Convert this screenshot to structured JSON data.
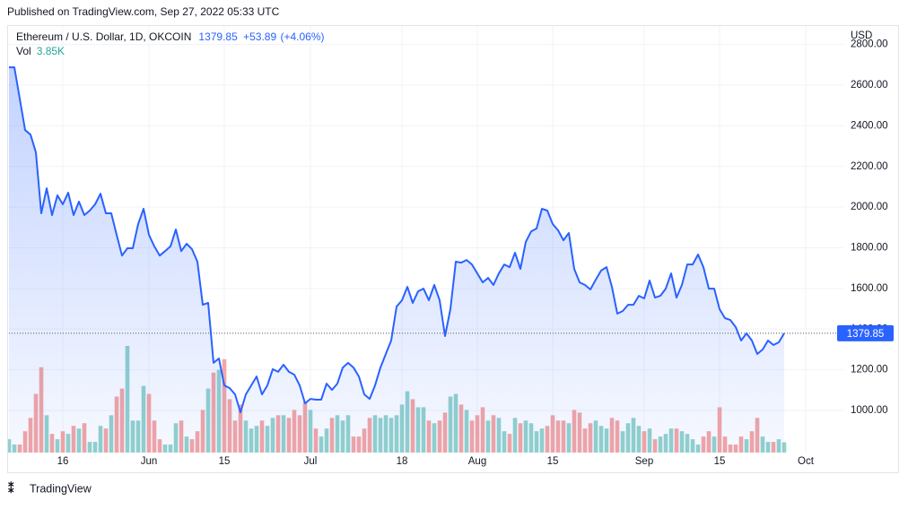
{
  "chart_data": {
    "type": "line",
    "published": "Published on TradingView.com, Sep 27, 2022 05:33 UTC",
    "symbol": "Ethereum / U.S. Dollar, 1D, OKCOIN",
    "last_price": 1379.85,
    "change": {
      "value": 53.89,
      "label": "+53.89"
    },
    "change_pct": {
      "value": 4.06,
      "label": "(+4.06%)"
    },
    "volume_title": "Vol",
    "last_volume": {
      "value": 3850,
      "label": "3.85K"
    },
    "currency": "USD",
    "brand": "TradingView",
    "x": [
      "05-06",
      "05-07",
      "05-08",
      "05-09",
      "05-10",
      "05-11",
      "05-12",
      "05-13",
      "05-14",
      "05-15",
      "05-16",
      "05-17",
      "05-18",
      "05-19",
      "05-20",
      "05-21",
      "05-22",
      "05-23",
      "05-24",
      "05-25",
      "05-26",
      "05-27",
      "05-28",
      "05-29",
      "05-30",
      "05-31",
      "06-01",
      "06-02",
      "06-03",
      "06-04",
      "06-05",
      "06-06",
      "06-07",
      "06-08",
      "06-09",
      "06-10",
      "06-11",
      "06-12",
      "06-13",
      "06-14",
      "06-15",
      "06-16",
      "06-17",
      "06-18",
      "06-19",
      "06-20",
      "06-21",
      "06-22",
      "06-23",
      "06-24",
      "06-25",
      "06-26",
      "06-27",
      "06-28",
      "06-29",
      "06-30",
      "07-01",
      "07-02",
      "07-03",
      "07-04",
      "07-05",
      "07-06",
      "07-07",
      "07-08",
      "07-09",
      "07-10",
      "07-11",
      "07-12",
      "07-13",
      "07-14",
      "07-15",
      "07-16",
      "07-17",
      "07-18",
      "07-19",
      "07-20",
      "07-21",
      "07-22",
      "07-23",
      "07-24",
      "07-25",
      "07-26",
      "07-27",
      "07-28",
      "07-29",
      "07-30",
      "07-31",
      "08-01",
      "08-02",
      "08-03",
      "08-04",
      "08-05",
      "08-06",
      "08-07",
      "08-08",
      "08-09",
      "08-10",
      "08-11",
      "08-12",
      "08-13",
      "08-14",
      "08-15",
      "08-16",
      "08-17",
      "08-18",
      "08-19",
      "08-20",
      "08-21",
      "08-22",
      "08-23",
      "08-24",
      "08-25",
      "08-26",
      "08-27",
      "08-28",
      "08-29",
      "08-30",
      "08-31",
      "09-01",
      "09-02",
      "09-03",
      "09-04",
      "09-05",
      "09-06",
      "09-07",
      "09-08",
      "09-09",
      "09-10",
      "09-11",
      "09-12",
      "09-13",
      "09-14",
      "09-15",
      "09-16",
      "09-17",
      "09-18",
      "09-19",
      "09-20",
      "09-21",
      "09-22",
      "09-23",
      "09-24",
      "09-25",
      "09-26",
      "09-27"
    ],
    "series": [
      {
        "name": "Price",
        "color": "#2962ff",
        "values": [
          2688,
          2688,
          2534,
          2379,
          2357,
          2269,
          1970,
          2093,
          1961,
          2058,
          2014,
          2071,
          1961,
          2027,
          1961,
          1983,
          2014,
          2066,
          1970,
          1970,
          1864,
          1762,
          1798,
          1798,
          1917,
          1992,
          1864,
          1807,
          1762,
          1784,
          1807,
          1890,
          1784,
          1820,
          1793,
          1732,
          1520,
          1529,
          1234,
          1256,
          1123,
          1110,
          1079,
          991,
          1079,
          1123,
          1167,
          1079,
          1123,
          1203,
          1190,
          1225,
          1190,
          1176,
          1123,
          1035,
          1057,
          1053,
          1053,
          1132,
          1101,
          1132,
          1211,
          1234,
          1211,
          1167,
          1079,
          1057,
          1123,
          1211,
          1278,
          1344,
          1511,
          1542,
          1608,
          1529,
          1586,
          1599,
          1542,
          1617,
          1542,
          1366,
          1498,
          1732,
          1727,
          1740,
          1718,
          1674,
          1630,
          1652,
          1617,
          1674,
          1718,
          1705,
          1776,
          1696,
          1829,
          1881,
          1895,
          1992,
          1983,
          1917,
          1886,
          1837,
          1873,
          1696,
          1630,
          1617,
          1595,
          1643,
          1688,
          1705,
          1608,
          1476,
          1489,
          1520,
          1520,
          1564,
          1551,
          1639,
          1555,
          1564,
          1599,
          1674,
          1555,
          1617,
          1718,
          1718,
          1767,
          1705,
          1599,
          1599,
          1498,
          1454,
          1445,
          1410,
          1344,
          1379,
          1344,
          1278,
          1300,
          1344,
          1322,
          1335,
          1379.85
        ]
      },
      {
        "name": "Vol",
        "up_color": "#93d3cc",
        "down_color": "#f5a6a4",
        "axis": "vol",
        "values": [
          5000,
          3000,
          3000,
          8000,
          13000,
          22000,
          32000,
          14000,
          7000,
          5000,
          8000,
          7000,
          10000,
          9000,
          11000,
          4000,
          4000,
          10000,
          9000,
          14000,
          21000,
          24000,
          40000,
          12000,
          12000,
          25000,
          22000,
          12000,
          5000,
          3000,
          3000,
          11000,
          12000,
          6000,
          5000,
          8000,
          16000,
          24000,
          30000,
          31000,
          35000,
          20000,
          12000,
          18000,
          12000,
          9000,
          10000,
          12000,
          10000,
          13000,
          14000,
          14000,
          13000,
          16000,
          14000,
          19000,
          16000,
          9000,
          6000,
          9000,
          13000,
          14000,
          12000,
          14000,
          6000,
          6000,
          9000,
          13000,
          14000,
          13000,
          14000,
          13000,
          14000,
          18000,
          23000,
          20000,
          17000,
          17000,
          12000,
          11000,
          12000,
          15000,
          21000,
          22000,
          18000,
          16000,
          12000,
          14000,
          17000,
          12000,
          14000,
          13000,
          8000,
          7000,
          13000,
          11000,
          12000,
          11000,
          8000,
          9000,
          10000,
          14000,
          12000,
          12000,
          11000,
          16000,
          15000,
          9000,
          11000,
          12000,
          10000,
          9000,
          13000,
          12000,
          8000,
          11000,
          13000,
          10000,
          8000,
          9000,
          5000,
          6000,
          7000,
          9000,
          9000,
          8000,
          7000,
          5000,
          3000,
          6000,
          8000,
          6000,
          17000,
          6000,
          3000,
          3000,
          6000,
          5000,
          8000,
          13000,
          6000,
          4000,
          4000,
          5000,
          3850
        ]
      }
    ],
    "xlim": [
      "05-06",
      "10-08"
    ],
    "xticks": [
      {
        "value": "05-16",
        "label": "16"
      },
      {
        "value": "06-01",
        "label": "Jun"
      },
      {
        "value": "06-15",
        "label": "15"
      },
      {
        "value": "07-01",
        "label": "Jul"
      },
      {
        "value": "07-18",
        "label": "18"
      },
      {
        "value": "08-01",
        "label": "Aug"
      },
      {
        "value": "08-15",
        "label": "15"
      },
      {
        "value": "09-01",
        "label": "Sep"
      },
      {
        "value": "09-15",
        "label": "15"
      },
      {
        "value": "10-01",
        "label": "Oct"
      }
    ],
    "ylim": [
      793,
      2891
    ],
    "yticks": [
      {
        "value": 1000,
        "label": "1000.00"
      },
      {
        "value": 1200,
        "label": "1200.00"
      },
      {
        "value": 1400,
        "label": "1400.00"
      },
      {
        "value": 1600,
        "label": "1600.00"
      },
      {
        "value": 1800,
        "label": "1800.00"
      },
      {
        "value": 2000,
        "label": "2000.00"
      },
      {
        "value": 2200,
        "label": "2200.00"
      },
      {
        "value": 2400,
        "label": "2400.00"
      },
      {
        "value": 2600,
        "label": "2600.00"
      },
      {
        "value": 2800,
        "label": "2800.00"
      }
    ],
    "vol_ylim": [
      0,
      160000
    ],
    "grid": true
  }
}
